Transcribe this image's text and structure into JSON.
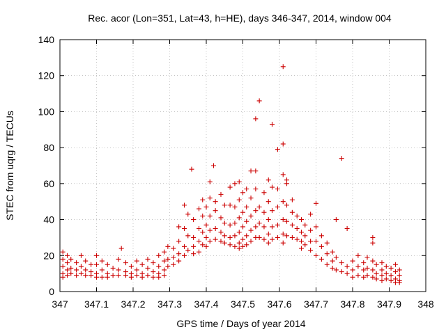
{
  "chart_data": {
    "type": "scatter",
    "title": "Rec. acor (Lon=351, Lat=43, h=HE), days 346-347, 2014, window 004",
    "xlabel": "GPS time / Days of year 2014",
    "ylabel": "STEC from uqrg / TECUs",
    "xlim": [
      347,
      348
    ],
    "ylim": [
      0,
      140
    ],
    "xticks": [
      347,
      347.1,
      347.2,
      347.3,
      347.4,
      347.5,
      347.6,
      347.7,
      347.8,
      347.9,
      348
    ],
    "xtick_labels": [
      "347",
      "347.1",
      "347.2",
      "347.3",
      "347.4",
      "347.5",
      "347.6",
      "347.7",
      "347.8",
      "347.9",
      "348"
    ],
    "yticks": [
      0,
      20,
      40,
      60,
      80,
      100,
      120,
      140
    ],
    "ytick_labels": [
      "0",
      "20",
      "40",
      "60",
      "80",
      "100",
      "120",
      "140"
    ],
    "grid": true,
    "marker": "+",
    "color": "#cc0000",
    "series": [
      {
        "name": "STEC",
        "points": [
          [
            347.008,
            22
          ],
          [
            347.008,
            18
          ],
          [
            347.008,
            14
          ],
          [
            347.008,
            10
          ],
          [
            347.008,
            8
          ],
          [
            347.02,
            20
          ],
          [
            347.02,
            16
          ],
          [
            347.02,
            12
          ],
          [
            347.02,
            9
          ],
          [
            347.03,
            18
          ],
          [
            347.03,
            13
          ],
          [
            347.03,
            10
          ],
          [
            347.045,
            16
          ],
          [
            347.045,
            12
          ],
          [
            347.045,
            9
          ],
          [
            347.058,
            20
          ],
          [
            347.058,
            14
          ],
          [
            347.058,
            10
          ],
          [
            347.07,
            17
          ],
          [
            347.07,
            12
          ],
          [
            347.07,
            9
          ],
          [
            347.085,
            15
          ],
          [
            347.085,
            11
          ],
          [
            347.085,
            9
          ],
          [
            347.1,
            20
          ],
          [
            347.1,
            15
          ],
          [
            347.1,
            10
          ],
          [
            347.1,
            8
          ],
          [
            347.115,
            17
          ],
          [
            347.115,
            12
          ],
          [
            347.115,
            8
          ],
          [
            347.13,
            15
          ],
          [
            347.13,
            10
          ],
          [
            347.13,
            8
          ],
          [
            347.145,
            13
          ],
          [
            347.145,
            9
          ],
          [
            347.16,
            18
          ],
          [
            347.16,
            12
          ],
          [
            347.16,
            9
          ],
          [
            347.168,
            24
          ],
          [
            347.18,
            16
          ],
          [
            347.18,
            11
          ],
          [
            347.18,
            9
          ],
          [
            347.195,
            14
          ],
          [
            347.195,
            10
          ],
          [
            347.195,
            8
          ],
          [
            347.21,
            17
          ],
          [
            347.21,
            12
          ],
          [
            347.21,
            9
          ],
          [
            347.225,
            15
          ],
          [
            347.225,
            10
          ],
          [
            347.225,
            8
          ],
          [
            347.24,
            18
          ],
          [
            347.24,
            13
          ],
          [
            347.24,
            9
          ],
          [
            347.255,
            16
          ],
          [
            347.255,
            11
          ],
          [
            347.255,
            8
          ],
          [
            347.27,
            20
          ],
          [
            347.27,
            14
          ],
          [
            347.27,
            10
          ],
          [
            347.27,
            8
          ],
          [
            347.285,
            22
          ],
          [
            347.285,
            17
          ],
          [
            347.285,
            12
          ],
          [
            347.285,
            9
          ],
          [
            347.295,
            25
          ],
          [
            347.295,
            18
          ],
          [
            347.295,
            14
          ],
          [
            347.31,
            24
          ],
          [
            347.31,
            19
          ],
          [
            347.31,
            15
          ],
          [
            347.325,
            36
          ],
          [
            347.325,
            28
          ],
          [
            347.325,
            21
          ],
          [
            347.325,
            17
          ],
          [
            347.34,
            48
          ],
          [
            347.34,
            35
          ],
          [
            347.34,
            25
          ],
          [
            347.34,
            20
          ],
          [
            347.35,
            43
          ],
          [
            347.35,
            31
          ],
          [
            347.35,
            23
          ],
          [
            347.36,
            68
          ],
          [
            347.365,
            40
          ],
          [
            347.365,
            30
          ],
          [
            347.365,
            25
          ],
          [
            347.365,
            21
          ],
          [
            347.38,
            46
          ],
          [
            347.38,
            35
          ],
          [
            347.38,
            28
          ],
          [
            347.38,
            22
          ],
          [
            347.39,
            51
          ],
          [
            347.39,
            42
          ],
          [
            347.39,
            33
          ],
          [
            347.39,
            26
          ],
          [
            347.4,
            47
          ],
          [
            347.4,
            37
          ],
          [
            347.4,
            30
          ],
          [
            347.4,
            25
          ],
          [
            347.41,
            61
          ],
          [
            347.41,
            52
          ],
          [
            347.41,
            42
          ],
          [
            347.41,
            34
          ],
          [
            347.41,
            28
          ],
          [
            347.42,
            70
          ],
          [
            347.425,
            50
          ],
          [
            347.425,
            45
          ],
          [
            347.425,
            35
          ],
          [
            347.425,
            29
          ],
          [
            347.44,
            54
          ],
          [
            347.44,
            41
          ],
          [
            347.44,
            33
          ],
          [
            347.44,
            28
          ],
          [
            347.45,
            48
          ],
          [
            347.45,
            38
          ],
          [
            347.45,
            31
          ],
          [
            347.45,
            27
          ],
          [
            347.465,
            58
          ],
          [
            347.465,
            48
          ],
          [
            347.465,
            37
          ],
          [
            347.465,
            30
          ],
          [
            347.465,
            26
          ],
          [
            347.478,
            60
          ],
          [
            347.478,
            47
          ],
          [
            347.478,
            38
          ],
          [
            347.478,
            31
          ],
          [
            347.478,
            25
          ],
          [
            347.49,
            61
          ],
          [
            347.49,
            51
          ],
          [
            347.49,
            41
          ],
          [
            347.49,
            33
          ],
          [
            347.49,
            27
          ],
          [
            347.49,
            24
          ],
          [
            347.5,
            55
          ],
          [
            347.5,
            44
          ],
          [
            347.5,
            36
          ],
          [
            347.5,
            29
          ],
          [
            347.5,
            25
          ],
          [
            347.51,
            57
          ],
          [
            347.51,
            47
          ],
          [
            347.51,
            39
          ],
          [
            347.51,
            31
          ],
          [
            347.51,
            26
          ],
          [
            347.522,
            67
          ],
          [
            347.522,
            52
          ],
          [
            347.522,
            42
          ],
          [
            347.522,
            34
          ],
          [
            347.522,
            28
          ],
          [
            347.535,
            96
          ],
          [
            347.535,
            67
          ],
          [
            347.535,
            57
          ],
          [
            347.535,
            45
          ],
          [
            347.535,
            36
          ],
          [
            347.535,
            30
          ],
          [
            347.545,
            106
          ],
          [
            347.545,
            47
          ],
          [
            347.545,
            38
          ],
          [
            347.545,
            30
          ],
          [
            347.558,
            55
          ],
          [
            347.558,
            44
          ],
          [
            347.558,
            36
          ],
          [
            347.558,
            29
          ],
          [
            347.57,
            62
          ],
          [
            347.57,
            50
          ],
          [
            347.57,
            40
          ],
          [
            347.57,
            32
          ],
          [
            347.57,
            27
          ],
          [
            347.58,
            93
          ],
          [
            347.58,
            58
          ],
          [
            347.58,
            45
          ],
          [
            347.58,
            36
          ],
          [
            347.58,
            29
          ],
          [
            347.595,
            79
          ],
          [
            347.595,
            57
          ],
          [
            347.595,
            47
          ],
          [
            347.595,
            37
          ],
          [
            347.595,
            30
          ],
          [
            347.61,
            125
          ],
          [
            347.61,
            82
          ],
          [
            347.61,
            65
          ],
          [
            347.61,
            50
          ],
          [
            347.61,
            40
          ],
          [
            347.61,
            32
          ],
          [
            347.61,
            27
          ],
          [
            347.62,
            62
          ],
          [
            347.62,
            60
          ],
          [
            347.62,
            48
          ],
          [
            347.62,
            39
          ],
          [
            347.62,
            31
          ],
          [
            347.635,
            51
          ],
          [
            347.635,
            44
          ],
          [
            347.635,
            37
          ],
          [
            347.635,
            30
          ],
          [
            347.648,
            42
          ],
          [
            347.648,
            35
          ],
          [
            347.648,
            29
          ],
          [
            347.66,
            40
          ],
          [
            347.66,
            33
          ],
          [
            347.66,
            28
          ],
          [
            347.66,
            24
          ],
          [
            347.67,
            37
          ],
          [
            347.67,
            31
          ],
          [
            347.67,
            26
          ],
          [
            347.685,
            43
          ],
          [
            347.685,
            34
          ],
          [
            347.685,
            28
          ],
          [
            347.685,
            23
          ],
          [
            347.7,
            49
          ],
          [
            347.7,
            36
          ],
          [
            347.7,
            28
          ],
          [
            347.7,
            20
          ],
          [
            347.715,
            31
          ],
          [
            347.715,
            25
          ],
          [
            347.715,
            18
          ],
          [
            347.73,
            27
          ],
          [
            347.73,
            21
          ],
          [
            347.73,
            15
          ],
          [
            347.745,
            22
          ],
          [
            347.745,
            17
          ],
          [
            347.745,
            13
          ],
          [
            347.755,
            40
          ],
          [
            347.755,
            19
          ],
          [
            347.755,
            12
          ],
          [
            347.77,
            74
          ],
          [
            347.77,
            16
          ],
          [
            347.77,
            11
          ],
          [
            347.785,
            35
          ],
          [
            347.785,
            14
          ],
          [
            347.785,
            10
          ],
          [
            347.8,
            17
          ],
          [
            347.8,
            12
          ],
          [
            347.8,
            8
          ],
          [
            347.815,
            20
          ],
          [
            347.815,
            14
          ],
          [
            347.815,
            9
          ],
          [
            347.83,
            16
          ],
          [
            347.83,
            12
          ],
          [
            347.83,
            8
          ],
          [
            347.84,
            19
          ],
          [
            347.84,
            13
          ],
          [
            347.84,
            9
          ],
          [
            347.855,
            30
          ],
          [
            347.855,
            27
          ],
          [
            347.855,
            17
          ],
          [
            347.855,
            12
          ],
          [
            347.855,
            8
          ],
          [
            347.865,
            15
          ],
          [
            347.865,
            10
          ],
          [
            347.865,
            7
          ],
          [
            347.88,
            16
          ],
          [
            347.88,
            12
          ],
          [
            347.88,
            9
          ],
          [
            347.88,
            6
          ],
          [
            347.892,
            14
          ],
          [
            347.892,
            10
          ],
          [
            347.892,
            7
          ],
          [
            347.905,
            13
          ],
          [
            347.905,
            9
          ],
          [
            347.905,
            6
          ],
          [
            347.917,
            15
          ],
          [
            347.917,
            11
          ],
          [
            347.917,
            7
          ],
          [
            347.917,
            5
          ],
          [
            347.928,
            12
          ],
          [
            347.928,
            9
          ],
          [
            347.928,
            6
          ],
          [
            347.928,
            5
          ]
        ]
      }
    ]
  }
}
